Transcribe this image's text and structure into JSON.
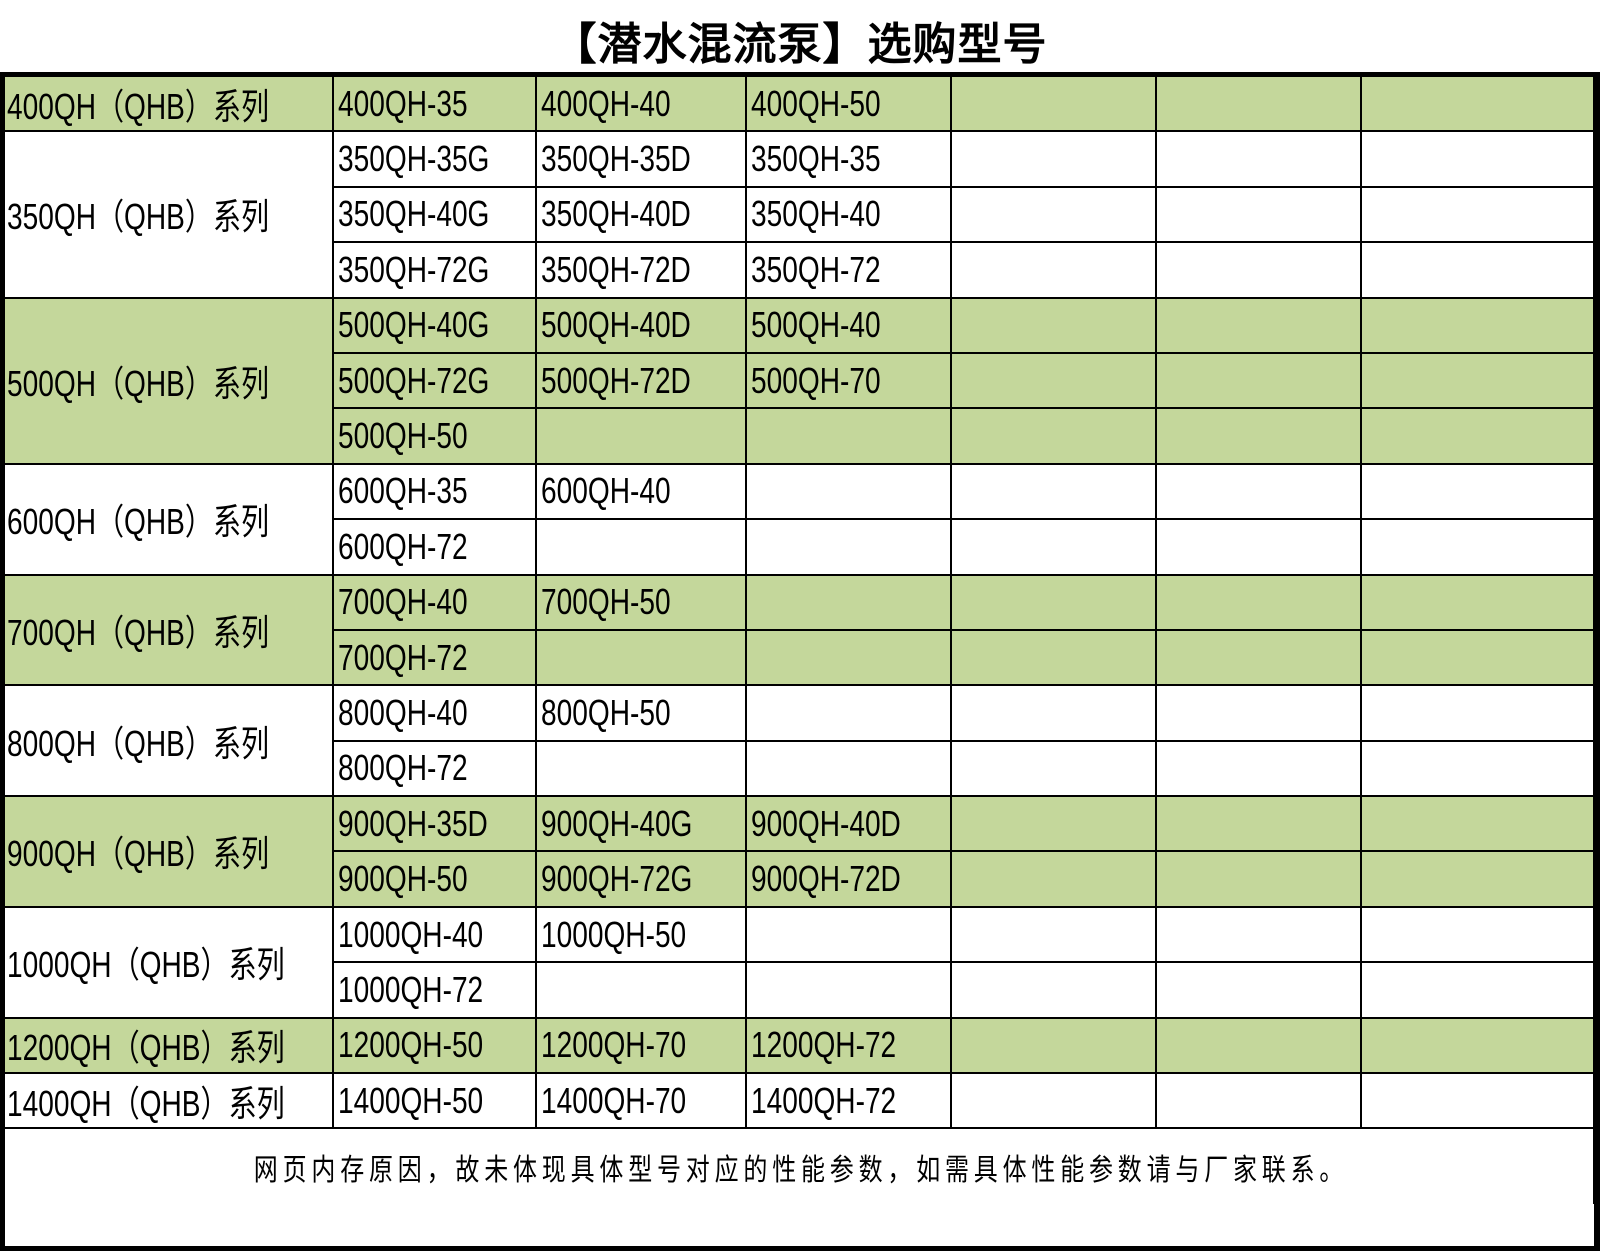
{
  "title": "【潜水混流泵】选购型号",
  "colors": {
    "green": "#c4d79b",
    "white": "#ffffff",
    "border": "#000000"
  },
  "groups": [
    {
      "label": "400QH（QHB）系列",
      "shaded": true,
      "rows": [
        [
          "400QH-35",
          "400QH-40",
          "400QH-50"
        ]
      ]
    },
    {
      "label": "350QH（QHB）系列",
      "shaded": false,
      "rows": [
        [
          "350QH-35G",
          "350QH-35D",
          "350QH-35"
        ],
        [
          "350QH-40G",
          "350QH-40D",
          "350QH-40"
        ],
        [
          "350QH-72G",
          "350QH-72D",
          "350QH-72"
        ]
      ]
    },
    {
      "label": "500QH（QHB）系列",
      "shaded": true,
      "rows": [
        [
          "500QH-40G",
          "500QH-40D",
          "500QH-40"
        ],
        [
          "500QH-72G",
          "500QH-72D",
          "500QH-70"
        ],
        [
          "500QH-50",
          "",
          ""
        ]
      ]
    },
    {
      "label": "600QH（QHB）系列",
      "shaded": false,
      "rows": [
        [
          "600QH-35",
          "600QH-40",
          ""
        ],
        [
          "600QH-72",
          "",
          ""
        ]
      ]
    },
    {
      "label": "700QH（QHB）系列",
      "shaded": true,
      "rows": [
        [
          "700QH-40",
          "700QH-50",
          ""
        ],
        [
          "700QH-72",
          "",
          ""
        ]
      ]
    },
    {
      "label": "800QH（QHB）系列",
      "shaded": false,
      "rows": [
        [
          "800QH-40",
          "800QH-50",
          ""
        ],
        [
          "800QH-72",
          "",
          ""
        ]
      ]
    },
    {
      "label": "900QH（QHB）系列",
      "shaded": true,
      "rows": [
        [
          "900QH-35D",
          "900QH-40G",
          "900QH-40D"
        ],
        [
          "900QH-50",
          "900QH-72G",
          "900QH-72D"
        ]
      ]
    },
    {
      "label": "1000QH（QHB）系列",
      "shaded": false,
      "rows": [
        [
          "1000QH-40",
          "1000QH-50",
          ""
        ],
        [
          "1000QH-72",
          "",
          ""
        ]
      ]
    },
    {
      "label": "1200QH（QHB）系列",
      "shaded": true,
      "rows": [
        [
          "1200QH-50",
          "1200QH-70",
          "1200QH-72"
        ]
      ]
    },
    {
      "label": "1400QH（QHB）系列",
      "shaded": false,
      "rows": [
        [
          "1400QH-50",
          "1400QH-70",
          "1400QH-72"
        ]
      ]
    }
  ],
  "footer": "网页内存原因，故未体现具体型号对应的性能参数，如需具体性能参数请与厂家联系。"
}
